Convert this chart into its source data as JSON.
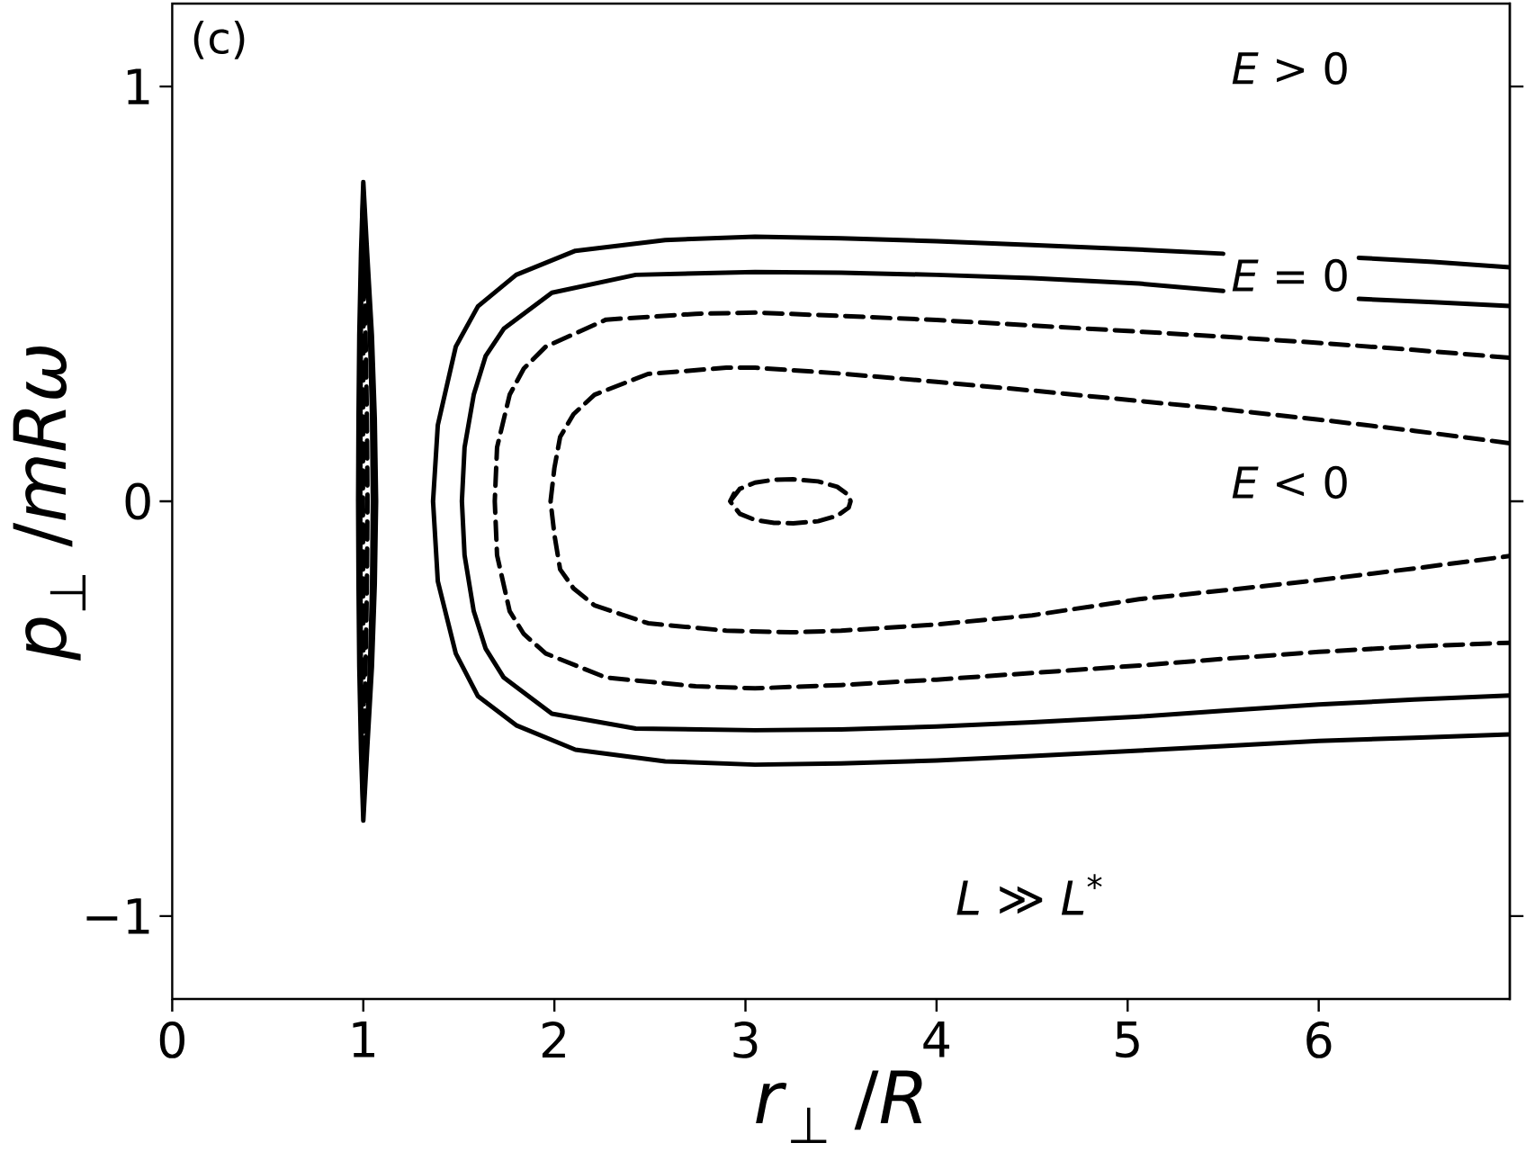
{
  "chart_data": {
    "type": "line",
    "xlabel": "*r*$_{⊥}$ /*R*",
    "ylabel": "*p*$_{⊥}$ /*mRω*",
    "xlim": [
      0,
      7
    ],
    "ylim": [
      -1.2,
      1.2
    ],
    "xticks": [
      0,
      1,
      2,
      3,
      4,
      5,
      6
    ],
    "yticks": [
      {
        "value": -1,
        "label": "−1"
      },
      0,
      1
    ],
    "annotations": [
      "(c)",
      "*E* > 0",
      "*E* = 0",
      "*E* < 0",
      "*L* ≫ *L*$^{*}$"
    ],
    "series": [
      {
        "color": "#000000",
        "line_style": "solid",
        "x": [
          1.0,
          0.988,
          0.979,
          0.975,
          0.973,
          0.975,
          0.979,
          0.988,
          1.0,
          1.02,
          1.045,
          1.06,
          1.067,
          1.06,
          1.045,
          1.02,
          1.0,
          0.994
        ],
        "values": [
          0.77,
          0.6,
          0.4,
          0.2,
          0,
          -0.2,
          -0.4,
          -0.6,
          -0.77,
          -0.6,
          -0.4,
          -0.2,
          0,
          0.2,
          0.4,
          0.6,
          0.77,
          0.69
        ]
      },
      {
        "color": "#000000",
        "line_style": "solid",
        "x": [
          1.0,
          0.992,
          0.987,
          0.985,
          0.984,
          0.985,
          0.987,
          0.992,
          1.0,
          1.015,
          1.035,
          1.046,
          1.05,
          1.046,
          1.035,
          1.015,
          1.0,
          0.996
        ],
        "values": [
          0.74,
          0.6,
          0.4,
          0.2,
          0,
          -0.2,
          -0.4,
          -0.6,
          -0.74,
          -0.6,
          -0.4,
          -0.2,
          0,
          0.2,
          0.4,
          0.6,
          0.74,
          0.67
        ]
      },
      {
        "color": "#000000",
        "line_style": "dashed",
        "x": [
          1.005,
          1.001,
          0.999,
          0.998,
          0.999,
          1.001,
          1.005,
          1.012,
          1.019,
          1.022,
          1.019,
          1.012,
          1.005,
          1.003
        ],
        "values": [
          0.66,
          0.4,
          0.2,
          0,
          -0.2,
          -0.4,
          -0.66,
          -0.4,
          -0.2,
          0,
          0.2,
          0.4,
          0.66,
          0.53
        ]
      },
      {
        "color": "#000000",
        "line_style": "solid",
        "x": [
          7.0,
          6.6,
          6.21,
          5.85,
          5.5,
          5.06,
          4.5,
          4.0,
          3.5,
          3.05,
          2.58,
          2.11,
          1.8,
          1.6,
          1.484,
          1.39,
          1.365,
          1.39,
          1.484,
          1.6,
          1.8,
          2.11,
          2.58,
          3.05,
          3.5,
          4.0,
          4.5,
          5.06,
          5.5,
          6.0,
          6.5,
          7.0
        ],
        "values": [
          0.564,
          0.577,
          0.587,
          null,
          0.597,
          0.607,
          0.618,
          0.627,
          0.634,
          0.638,
          0.63,
          0.604,
          0.546,
          0.47,
          0.373,
          0.184,
          0,
          -0.193,
          -0.367,
          -0.47,
          -0.54,
          -0.599,
          -0.627,
          -0.635,
          -0.632,
          -0.625,
          -0.614,
          -0.601,
          -0.59,
          -0.578,
          -0.57,
          -0.562
        ]
      },
      {
        "color": "#000000",
        "line_style": "solid",
        "x": [
          7.0,
          6.6,
          6.21,
          5.85,
          5.5,
          5.06,
          4.5,
          4.0,
          3.5,
          3.05,
          2.426,
          1.987,
          1.735,
          1.64,
          1.578,
          1.53,
          1.516,
          1.53,
          1.578,
          1.64,
          1.735,
          1.987,
          2.426,
          3.05,
          3.5,
          4.0,
          4.5,
          5.06,
          5.5,
          6.0,
          6.5,
          7.0
        ],
        "values": [
          0.471,
          0.48,
          0.488,
          null,
          0.507,
          0.525,
          0.538,
          0.546,
          0.551,
          0.553,
          0.546,
          0.503,
          0.416,
          0.35,
          0.257,
          0.13,
          0,
          -0.13,
          -0.265,
          -0.355,
          -0.425,
          -0.512,
          -0.548,
          -0.552,
          -0.55,
          -0.543,
          -0.533,
          -0.519,
          -0.505,
          -0.49,
          -0.478,
          -0.468
        ]
      },
      {
        "color": "#000000",
        "line_style": "dashed",
        "x": [
          7.0,
          6.5,
          6.0,
          5.5,
          5.06,
          4.5,
          4.0,
          3.5,
          3.05,
          2.74,
          2.27,
          1.955,
          1.84,
          1.766,
          1.7,
          1.688,
          1.7,
          1.766,
          1.84,
          1.955,
          2.27,
          2.74,
          3.05,
          3.5,
          4.0,
          4.5,
          5.06,
          5.5,
          6.0,
          6.5,
          7.0
        ],
        "values": [
          0.346,
          0.365,
          0.382,
          0.397,
          0.409,
          0.424,
          0.437,
          0.447,
          0.455,
          0.452,
          0.438,
          0.373,
          0.32,
          0.257,
          0.13,
          0,
          -0.13,
          -0.265,
          -0.32,
          -0.367,
          -0.425,
          -0.446,
          -0.451,
          -0.443,
          -0.43,
          -0.414,
          -0.396,
          -0.38,
          -0.363,
          -0.35,
          -0.341
        ]
      },
      {
        "color": "#000000",
        "line_style": "dashed",
        "x": [
          7.0,
          6.5,
          6.0,
          5.5,
          5.06,
          4.5,
          4.0,
          3.5,
          3.05,
          2.9,
          2.49,
          2.21,
          2.1,
          2.03,
          2.0,
          1.98,
          2.0,
          2.03,
          2.1,
          2.21,
          2.49,
          2.9,
          3.24,
          3.5,
          4.0,
          4.5,
          5.06,
          5.5,
          6.0,
          6.5,
          7.0
        ],
        "values": [
          0.14,
          0.17,
          0.197,
          0.222,
          0.242,
          0.267,
          0.288,
          0.308,
          0.322,
          0.322,
          0.307,
          0.257,
          0.21,
          0.155,
          0.08,
          0,
          -0.08,
          -0.164,
          -0.21,
          -0.251,
          -0.294,
          -0.312,
          -0.316,
          -0.312,
          -0.297,
          -0.275,
          -0.236,
          -0.215,
          -0.19,
          -0.162,
          -0.132
        ]
      },
      {
        "color": "#000000",
        "line_style": "dashed",
        "x": [
          2.92,
          2.97,
          3.05,
          3.15,
          3.25,
          3.38,
          3.48,
          3.54,
          3.55,
          3.54,
          3.48,
          3.38,
          3.25,
          3.15,
          3.05,
          2.97,
          2.92,
          2.94
        ],
        "values": [
          0,
          0.03,
          0.045,
          0.052,
          0.053,
          0.048,
          0.035,
          0.015,
          0,
          -0.015,
          -0.035,
          -0.048,
          -0.053,
          -0.052,
          -0.045,
          -0.03,
          0,
          0.018
        ]
      }
    ]
  }
}
